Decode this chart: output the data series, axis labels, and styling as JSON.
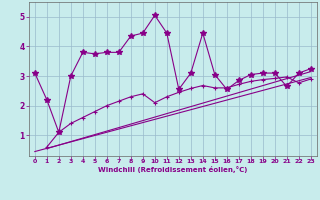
{
  "xlabel": "Windchill (Refroidissement éolien,°C)",
  "background_color": "#c8ecec",
  "line_color": "#880088",
  "grid_color": "#99bbcc",
  "xlim": [
    -0.5,
    23.5
  ],
  "ylim": [
    0.3,
    5.5
  ],
  "xticks": [
    0,
    1,
    2,
    3,
    4,
    5,
    6,
    7,
    8,
    9,
    10,
    11,
    12,
    13,
    14,
    15,
    16,
    17,
    18,
    19,
    20,
    21,
    22,
    23
  ],
  "yticks": [
    1,
    2,
    3,
    4,
    5
  ],
  "main_x": [
    0,
    1,
    2,
    3,
    4,
    5,
    6,
    7,
    8,
    9,
    10,
    11,
    12,
    13,
    14,
    15,
    16,
    17,
    18,
    19,
    20,
    21,
    22,
    23
  ],
  "main_y": [
    3.1,
    2.2,
    1.1,
    3.0,
    3.8,
    3.75,
    3.8,
    3.8,
    4.35,
    4.45,
    5.05,
    4.45,
    2.55,
    3.1,
    4.45,
    3.05,
    2.55,
    2.85,
    3.05,
    3.1,
    3.1,
    2.65,
    3.1,
    3.25
  ],
  "line2_x": [
    1,
    2,
    3,
    4,
    5,
    6,
    7,
    8,
    9,
    10,
    11,
    12,
    13,
    14,
    15,
    16,
    17,
    18,
    19,
    20,
    21,
    22,
    23
  ],
  "line2_y": [
    0.6,
    1.1,
    1.4,
    1.6,
    1.8,
    2.0,
    2.15,
    2.3,
    2.4,
    2.1,
    2.3,
    2.45,
    2.58,
    2.68,
    2.6,
    2.6,
    2.72,
    2.82,
    2.88,
    2.92,
    2.97,
    2.77,
    2.9
  ],
  "line3_x": [
    1,
    23
  ],
  "line3_y": [
    0.55,
    3.15
  ],
  "line4_x": [
    0,
    23
  ],
  "line4_y": [
    0.45,
    2.95
  ]
}
